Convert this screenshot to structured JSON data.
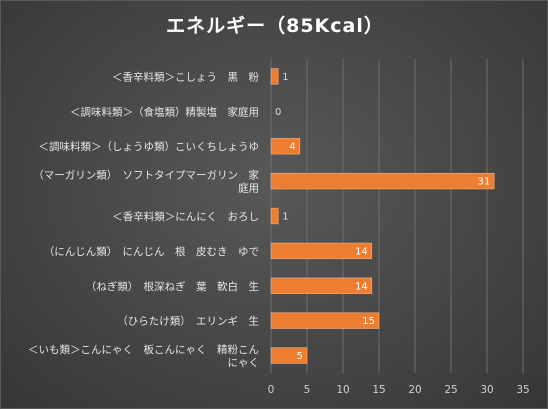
{
  "chart_data": {
    "type": "bar",
    "orientation": "horizontal",
    "title": "エネルギー（85Kcal）",
    "categories": [
      "＜香辛料類＞こしょう　黒　粉",
      "＜調味料類＞（食塩類）精製塩　家庭用",
      "＜調味料類＞（しょうゆ類）こいくちしょうゆ",
      "（マーガリン類）　ソフトタイプマーガリン　家庭用",
      "＜香辛料類＞にんにく　おろし",
      "（にんじん類）　にんじん　根　皮むき　ゆで",
      "（ねぎ類）　根深ねぎ　葉　軟白　生",
      "（ひらたけ類）　エリンギ　生",
      "＜いも類＞こんにゃく　板こんにゃく　精粉こんにゃく"
    ],
    "values": [
      1,
      0,
      4,
      31,
      1,
      14,
      14,
      15,
      5
    ],
    "xlim": [
      0,
      35
    ],
    "xticks": [
      0,
      5,
      10,
      15,
      20,
      25,
      30,
      35
    ],
    "grid": "vertical",
    "legend": "none",
    "colors": {
      "bar": "#ed7d31",
      "bar_border": "#f4b183",
      "grid": "#6e6e6e",
      "label_inside": "#ffffff",
      "label_outside": "#dcdcdc"
    }
  }
}
